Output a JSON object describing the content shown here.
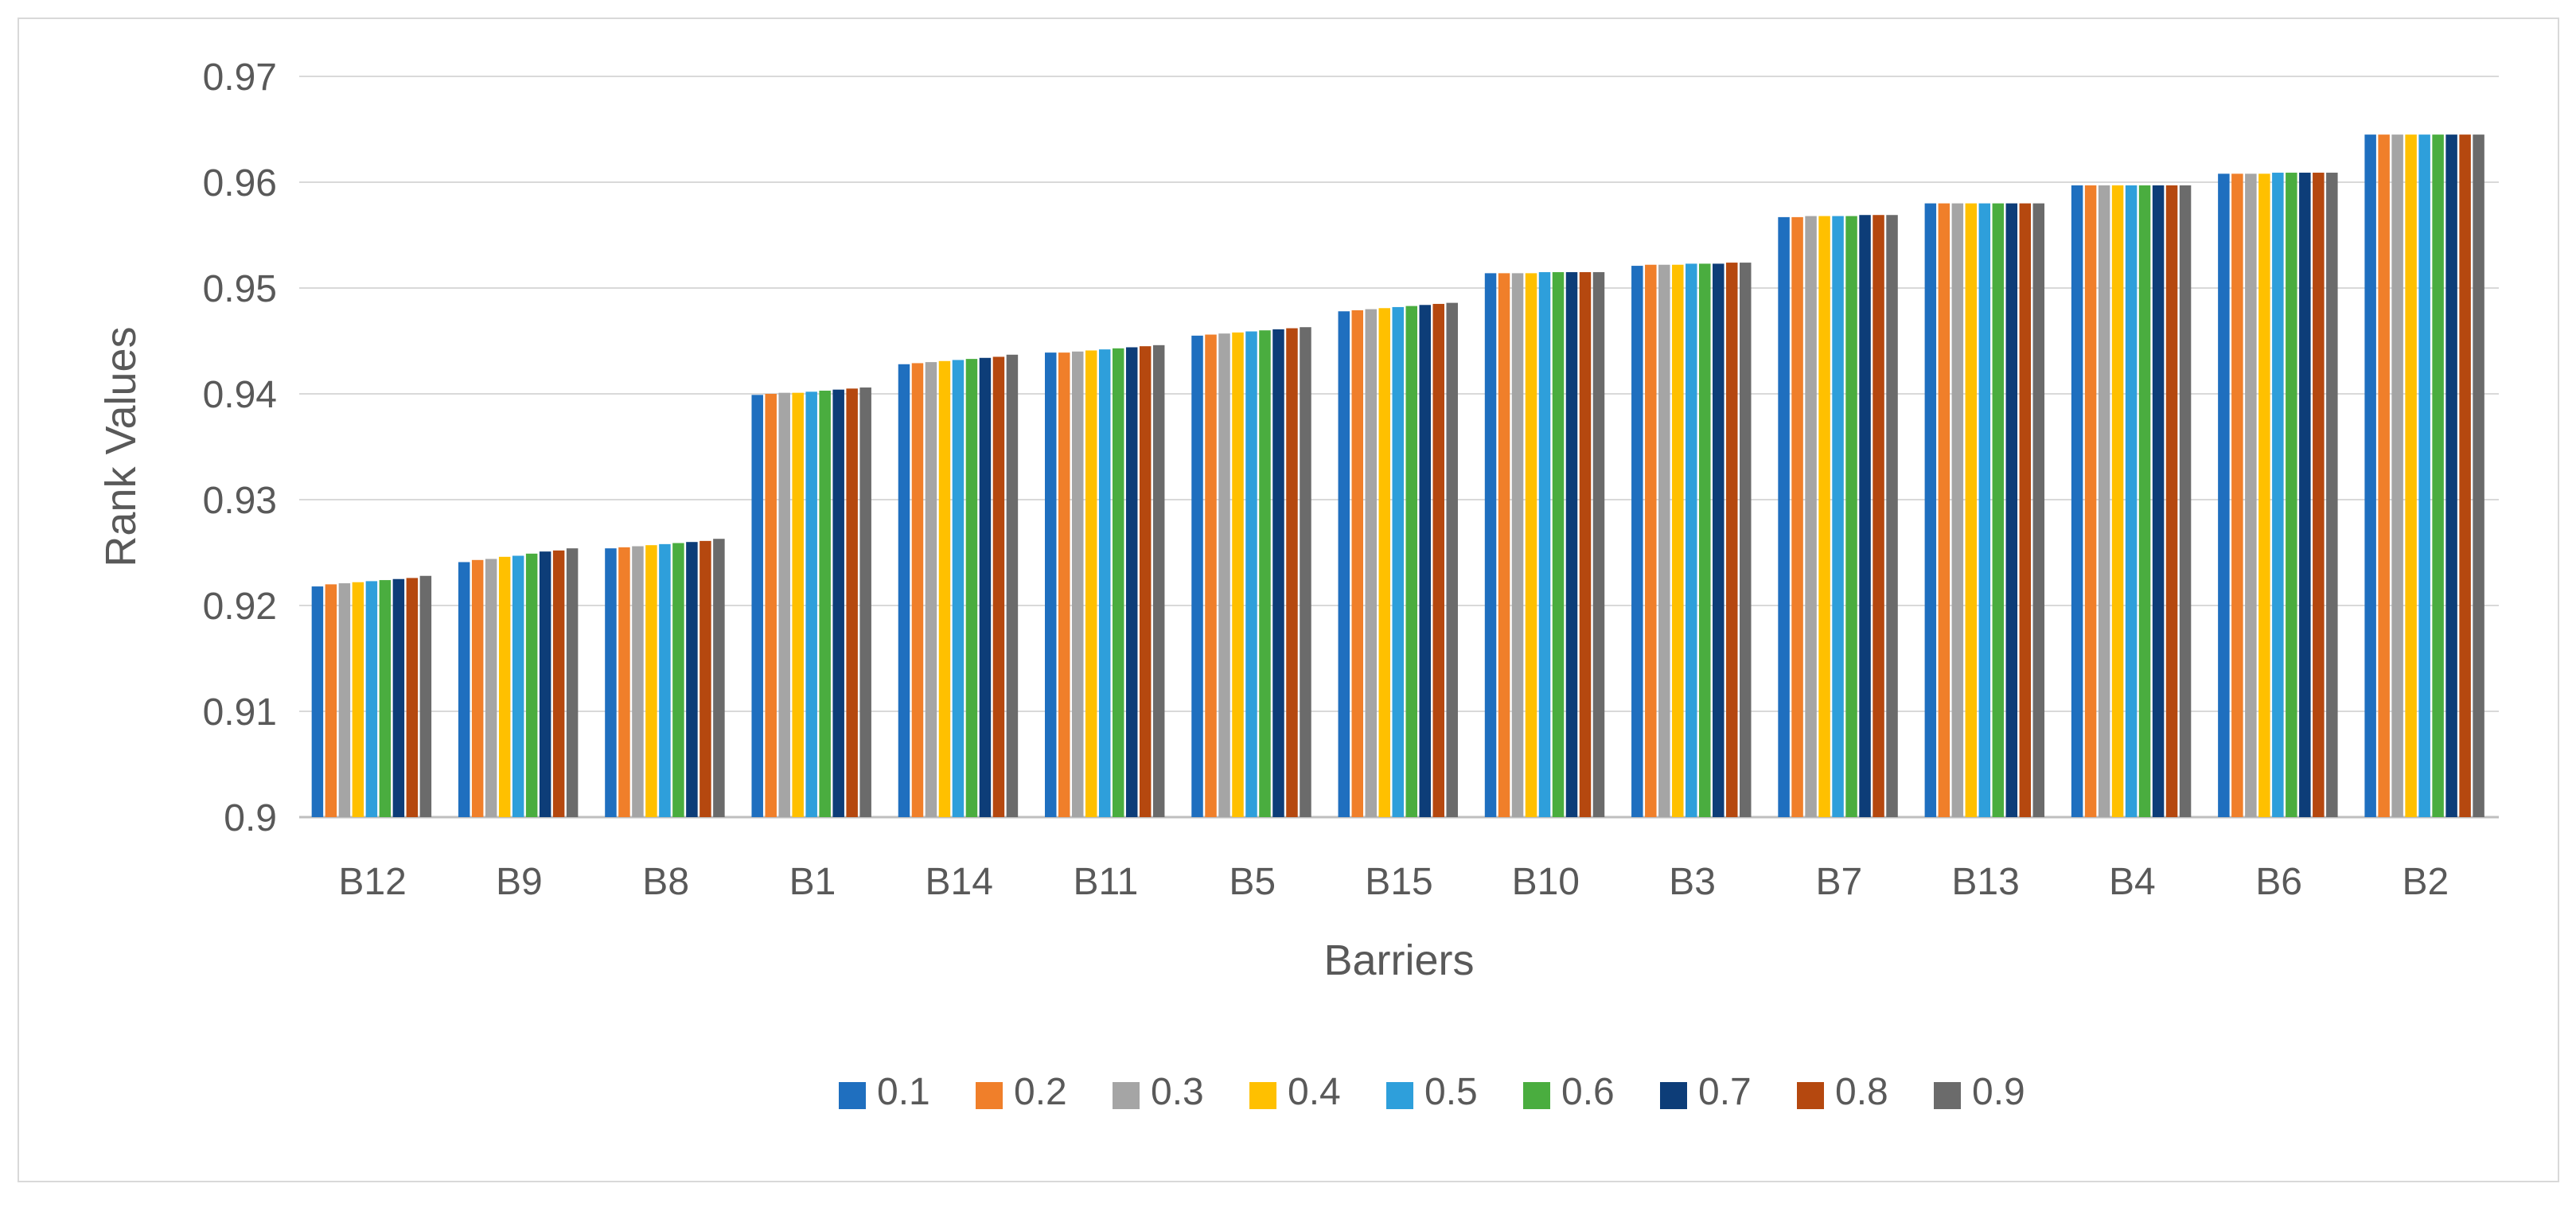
{
  "chart_data": {
    "type": "bar",
    "title": "",
    "xlabel": "Barriers",
    "ylabel": "Rank Values",
    "ylim": [
      0.9,
      0.97
    ],
    "yticks": [
      0.9,
      0.91,
      0.92,
      0.93,
      0.94,
      0.95,
      0.96,
      0.97
    ],
    "ytick_labels": [
      "0.9",
      "0.91",
      "0.92",
      "0.93",
      "0.94",
      "0.95",
      "0.96",
      "0.97"
    ],
    "grid": true,
    "legend_position": "bottom",
    "categories": [
      "B12",
      "B9",
      "B8",
      "B1",
      "B14",
      "B11",
      "B5",
      "B15",
      "B10",
      "B3",
      "B7",
      "B13",
      "B4",
      "B6",
      "B2"
    ],
    "series": [
      {
        "name": "0.1",
        "color": "#1f6fbf",
        "values": [
          0.9218,
          0.9241,
          0.9254,
          0.9399,
          0.9428,
          0.9439,
          0.9455,
          0.9478,
          0.9514,
          0.9521,
          0.9567,
          0.958,
          0.9597,
          0.9608,
          0.9645
        ]
      },
      {
        "name": "0.2",
        "color": "#f07f2a",
        "values": [
          0.922,
          0.9243,
          0.9255,
          0.94,
          0.9429,
          0.9439,
          0.9456,
          0.9479,
          0.9514,
          0.9522,
          0.9567,
          0.958,
          0.9597,
          0.9608,
          0.9645
        ]
      },
      {
        "name": "0.3",
        "color": "#a5a5a5",
        "values": [
          0.9221,
          0.9244,
          0.9256,
          0.9401,
          0.943,
          0.944,
          0.9457,
          0.948,
          0.9514,
          0.9522,
          0.9568,
          0.958,
          0.9597,
          0.9608,
          0.9645
        ]
      },
      {
        "name": "0.4",
        "color": "#ffc000",
        "values": [
          0.9222,
          0.9246,
          0.9257,
          0.9401,
          0.9431,
          0.9441,
          0.9458,
          0.9481,
          0.9514,
          0.9522,
          0.9568,
          0.958,
          0.9597,
          0.9608,
          0.9645
        ]
      },
      {
        "name": "0.5",
        "color": "#2e9fdb",
        "values": [
          0.9223,
          0.9247,
          0.9258,
          0.9402,
          0.9432,
          0.9442,
          0.9459,
          0.9482,
          0.9515,
          0.9523,
          0.9568,
          0.958,
          0.9597,
          0.9609,
          0.9645
        ]
      },
      {
        "name": "0.6",
        "color": "#4aad3f",
        "values": [
          0.9224,
          0.9249,
          0.9259,
          0.9403,
          0.9433,
          0.9443,
          0.946,
          0.9483,
          0.9515,
          0.9523,
          0.9568,
          0.958,
          0.9597,
          0.9609,
          0.9645
        ]
      },
      {
        "name": "0.7",
        "color": "#0d3d78",
        "values": [
          0.9225,
          0.9251,
          0.926,
          0.9404,
          0.9434,
          0.9444,
          0.9461,
          0.9484,
          0.9515,
          0.9523,
          0.9569,
          0.958,
          0.9597,
          0.9609,
          0.9645
        ]
      },
      {
        "name": "0.8",
        "color": "#b5480f",
        "values": [
          0.9226,
          0.9252,
          0.9261,
          0.9405,
          0.9435,
          0.9445,
          0.9462,
          0.9485,
          0.9515,
          0.9524,
          0.9569,
          0.958,
          0.9597,
          0.9609,
          0.9645
        ]
      },
      {
        "name": "0.9",
        "color": "#6b6b6b",
        "values": [
          0.9228,
          0.9254,
          0.9263,
          0.9406,
          0.9437,
          0.9446,
          0.9463,
          0.9486,
          0.9515,
          0.9524,
          0.9569,
          0.958,
          0.9597,
          0.9609,
          0.9645
        ]
      }
    ]
  }
}
